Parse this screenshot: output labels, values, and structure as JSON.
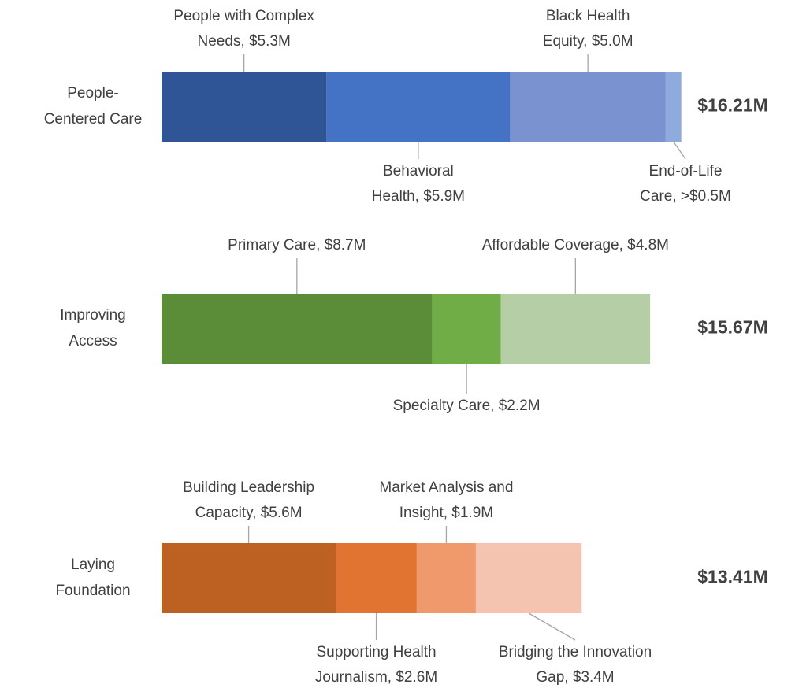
{
  "chart_data": {
    "type": "stacked-bar",
    "groups": [
      {
        "name_lines": [
          "People-",
          "Centered Care"
        ],
        "total_label": "$16.21M",
        "segments": [
          {
            "label_lines": [
              "People with Complex",
              "Needs, $5.3M"
            ],
            "value": 5.3,
            "color": "#2f5597",
            "label_position": "above"
          },
          {
            "label_lines": [
              "Behavioral",
              "Health, $5.9M"
            ],
            "value": 5.9,
            "color": "#4472c4",
            "label_position": "below"
          },
          {
            "label_lines": [
              "Black Health",
              "Equity, $5.0M"
            ],
            "value": 5.0,
            "color": "#7a93d0",
            "label_position": "above"
          },
          {
            "label_lines": [
              "End-of-Life",
              "Care, >$0.5M"
            ],
            "value": 0.5,
            "color": "#8faadc",
            "label_position": "below"
          }
        ]
      },
      {
        "name_lines": [
          "Improving",
          "Access"
        ],
        "total_label": "$15.67M",
        "segments": [
          {
            "label_lines": [
              "Primary Care, $8.7M"
            ],
            "value": 8.7,
            "color": "#5b8c37",
            "label_position": "above"
          },
          {
            "label_lines": [
              "Specialty Care, $2.2M"
            ],
            "value": 2.2,
            "color": "#70ad47",
            "label_position": "below"
          },
          {
            "label_lines": [
              "Affordable Coverage, $4.8M"
            ],
            "value": 4.8,
            "color": "#b5cea5",
            "label_position": "above"
          }
        ]
      },
      {
        "name_lines": [
          "Laying",
          "Foundation"
        ],
        "total_label": "$13.41M",
        "segments": [
          {
            "label_lines": [
              "Building Leadership",
              "Capacity, $5.6M"
            ],
            "value": 5.6,
            "color": "#bd6123",
            "label_position": "above"
          },
          {
            "label_lines": [
              "Supporting Health",
              "Journalism, $2.6M"
            ],
            "value": 2.6,
            "color": "#e07430",
            "label_position": "below"
          },
          {
            "label_lines": [
              "Market Analysis and",
              "Insight, $1.9M"
            ],
            "value": 1.9,
            "color": "#f0996d",
            "label_position": "above"
          },
          {
            "label_lines": [
              "Bridging the Innovation",
              "Gap, $3.4M"
            ],
            "value": 3.4,
            "color": "#f5c4b0",
            "label_position": "below"
          }
        ]
      }
    ]
  }
}
